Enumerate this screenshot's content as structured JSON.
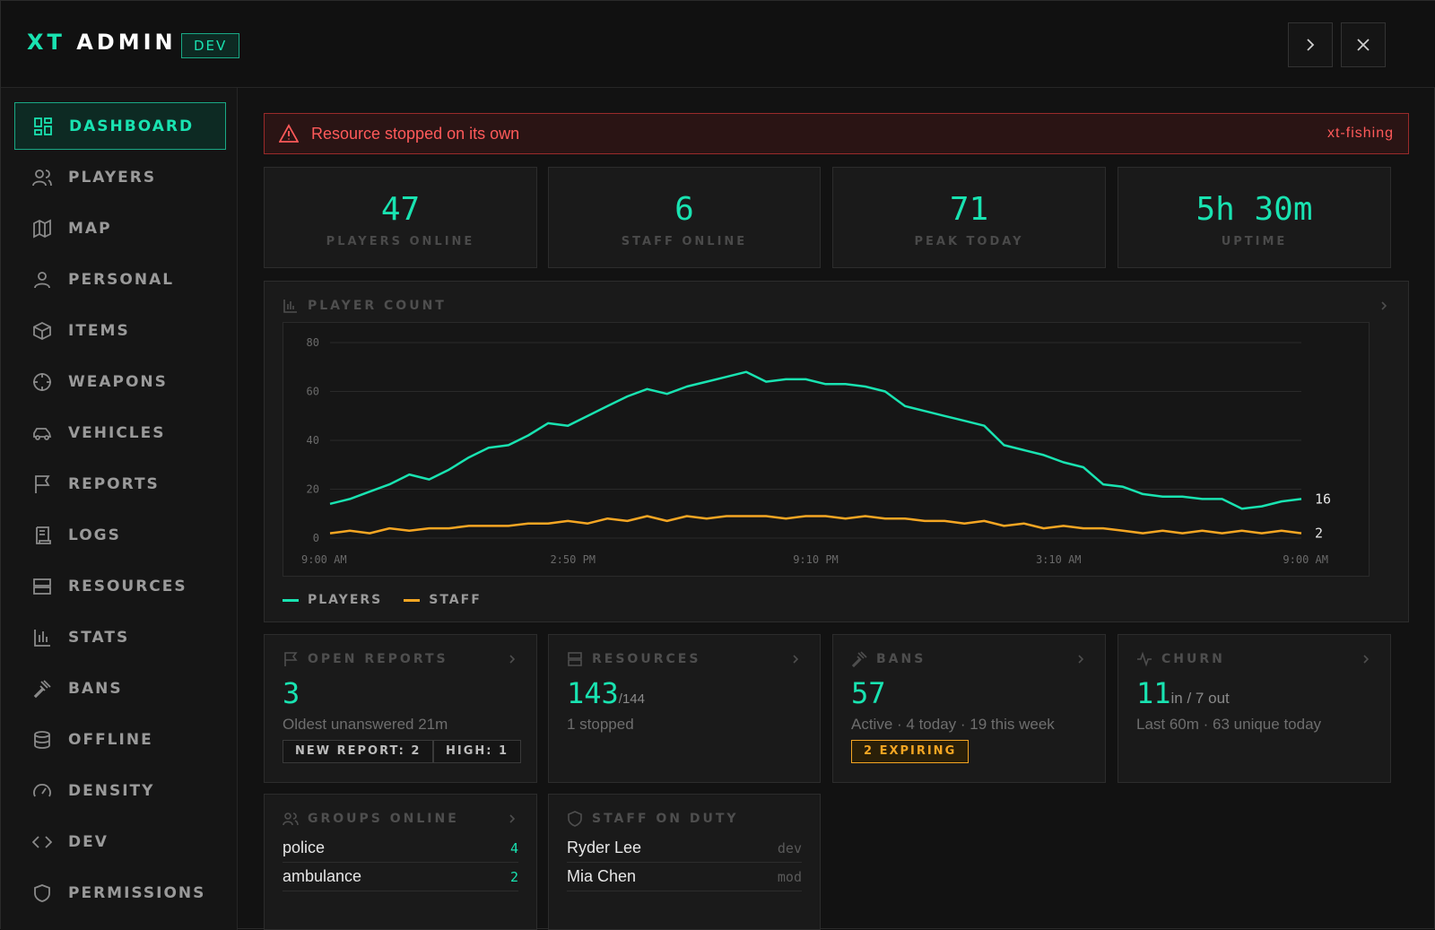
{
  "app": {
    "brand_accent": "XT",
    "brand_name": "ADMIN",
    "env_badge": "DEV",
    "accent_color": "#19e3b1",
    "staff_color": "#f5a623",
    "alert_color": "#ff5a5a",
    "window_controls": [
      "chevron-right-icon",
      "close-icon"
    ]
  },
  "sidebar": {
    "items": [
      {
        "label": "DASHBOARD",
        "icon": "dashboard-icon",
        "active": true
      },
      {
        "label": "PLAYERS",
        "icon": "users-icon"
      },
      {
        "label": "MAP",
        "icon": "map-icon"
      },
      {
        "label": "PERSONAL",
        "icon": "user-icon"
      },
      {
        "label": "ITEMS",
        "icon": "box-icon"
      },
      {
        "label": "WEAPONS",
        "icon": "crosshair-icon"
      },
      {
        "label": "VEHICLES",
        "icon": "car-icon"
      },
      {
        "label": "REPORTS",
        "icon": "flag-icon"
      },
      {
        "label": "LOGS",
        "icon": "scroll-icon"
      },
      {
        "label": "RESOURCES",
        "icon": "server-icon"
      },
      {
        "label": "STATS",
        "icon": "bar-chart-icon"
      },
      {
        "label": "BANS",
        "icon": "gavel-icon"
      },
      {
        "label": "OFFLINE",
        "icon": "database-icon"
      },
      {
        "label": "DENSITY",
        "icon": "gauge-icon"
      },
      {
        "label": "DEV",
        "icon": "code-icon"
      },
      {
        "label": "PERMISSIONS",
        "icon": "shield-icon"
      }
    ]
  },
  "alert": {
    "message": "Resource stopped on its own",
    "source": "xt-fishing",
    "icon": "warning-icon"
  },
  "stats": [
    {
      "value": "47",
      "label": "PLAYERS ONLINE"
    },
    {
      "value": "6",
      "label": "STAFF ONLINE"
    },
    {
      "value": "71",
      "label": "PEAK TODAY"
    },
    {
      "value": "5h 30m",
      "label": "UPTIME"
    }
  ],
  "player_count": {
    "title": "PLAYER COUNT",
    "legend_players": "PLAYERS",
    "legend_staff": "STAFF",
    "last_players": "16",
    "last_staff": "2"
  },
  "chart_data": {
    "type": "line",
    "title": "PLAYER COUNT",
    "ylim": [
      0,
      80
    ],
    "yticks": [
      0,
      20,
      40,
      60,
      80
    ],
    "x_tick_labels": [
      "9:00 AM",
      "2:50 PM",
      "9:10 PM",
      "3:10 AM",
      "9:00 AM"
    ],
    "grid": true,
    "legend_placement": "bottom-left",
    "series": [
      {
        "name": "PLAYERS",
        "color": "#19e3b1",
        "values": [
          14,
          16,
          19,
          22,
          26,
          24,
          28,
          33,
          37,
          38,
          42,
          47,
          46,
          50,
          54,
          58,
          61,
          59,
          62,
          64,
          66,
          68,
          64,
          65,
          65,
          63,
          63,
          62,
          60,
          54,
          52,
          50,
          48,
          46,
          38,
          36,
          34,
          31,
          29,
          22,
          21,
          18,
          17,
          17,
          16,
          16,
          12,
          13,
          15,
          16
        ]
      },
      {
        "name": "STAFF",
        "color": "#f5a623",
        "values": [
          2,
          3,
          2,
          4,
          3,
          4,
          4,
          5,
          5,
          5,
          6,
          6,
          7,
          6,
          8,
          7,
          9,
          7,
          9,
          8,
          9,
          9,
          9,
          8,
          9,
          9,
          8,
          9,
          8,
          8,
          7,
          7,
          6,
          7,
          5,
          6,
          4,
          5,
          4,
          4,
          3,
          2,
          3,
          2,
          3,
          2,
          3,
          2,
          3,
          2
        ]
      }
    ]
  },
  "cards": {
    "open_reports": {
      "title": "OPEN REPORTS",
      "value": "3",
      "desc": "Oldest unanswered 21m",
      "tag1": "NEW REPORT: 2",
      "tag2": "HIGH: 1"
    },
    "resources": {
      "title": "RESOURCES",
      "value": "143",
      "total": "/144",
      "desc": "1 stopped"
    },
    "bans": {
      "title": "BANS",
      "value": "57",
      "desc": "Active · 4 today · 19 this week",
      "tag": "2 EXPIRING"
    },
    "churn": {
      "title": "CHURN",
      "value": "11",
      "suffix": "in / 7 out",
      "desc": "Last 60m · 63 unique today"
    },
    "groups_online": {
      "title": "GROUPS ONLINE",
      "rows": [
        {
          "name": "police",
          "count": "4"
        },
        {
          "name": "ambulance",
          "count": "2"
        }
      ]
    },
    "staff_on_duty": {
      "title": "STAFF ON DUTY",
      "rows": [
        {
          "name": "Ryder Lee",
          "role": "dev"
        },
        {
          "name": "Mia Chen",
          "role": "mod"
        }
      ]
    }
  }
}
